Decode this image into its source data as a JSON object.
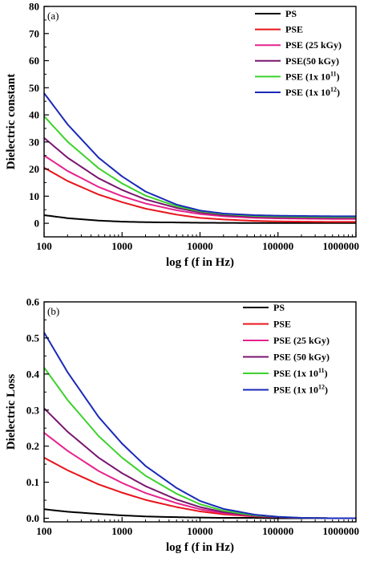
{
  "chart_data": [
    {
      "type": "line",
      "panel_label": "(a)",
      "xlabel": "log f (f in Hz)",
      "ylabel": "Dielectric constant",
      "xscale": "log",
      "xlim": [
        100,
        1000000
      ],
      "ylim": [
        -5,
        80
      ],
      "x_ticks": [
        100,
        1000,
        10000,
        100000,
        1000000
      ],
      "x_tick_labels": [
        "100",
        "1000",
        "10000",
        "100000",
        "1000000"
      ],
      "y_ticks": [
        0,
        10,
        20,
        30,
        40,
        50,
        60,
        70,
        80
      ],
      "y_tick_labels": [
        "0",
        "10",
        "20",
        "30",
        "40",
        "50",
        "60",
        "70",
        "80"
      ],
      "legend_position": "top-right",
      "x": [
        100,
        200,
        500,
        1000,
        2000,
        5000,
        10000,
        20000,
        50000,
        100000,
        200000,
        500000,
        1000000
      ],
      "series": [
        {
          "name": "PS",
          "name_main": "PS",
          "name_sup": "",
          "name_tail": "",
          "color": "#000000",
          "values": [
            3.0,
            1.9,
            1.0,
            0.6,
            0.4,
            0.3,
            0.2,
            0.15,
            0.1,
            0.1,
            0.1,
            0.1,
            0.1
          ]
        },
        {
          "name": "PSE",
          "name_main": "PSE",
          "name_sup": "",
          "name_tail": "",
          "color": "#e8141b",
          "values": [
            20.5,
            15.6,
            10.6,
            7.8,
            5.4,
            3.2,
            2.0,
            1.4,
            0.9,
            0.7,
            0.6,
            0.5,
            0.5
          ]
        },
        {
          "name": "PSE (25 kGy)",
          "name_main": "PSE (25 kGy)",
          "name_sup": "",
          "name_tail": "",
          "color": "#e5238e",
          "values": [
            25.0,
            19.3,
            13.4,
            10.0,
            7.3,
            4.8,
            3.4,
            2.6,
            2.0,
            1.8,
            1.7,
            1.6,
            1.6
          ]
        },
        {
          "name": "PSE(50 kGy)",
          "name_main": "PSE(50 kGy)",
          "name_sup": "",
          "name_tail": "",
          "color": "#7a1570",
          "values": [
            31.5,
            24.2,
            16.6,
            12.3,
            8.8,
            5.7,
            4.0,
            3.0,
            2.4,
            2.2,
            2.1,
            2.0,
            2.0
          ]
        },
        {
          "name": "PSE (1x 10^11)",
          "name_main": "PSE (1x 10",
          "name_sup": "11",
          "name_tail": ")",
          "color": "#3cd22c",
          "values": [
            39.5,
            30.1,
            20.3,
            14.7,
            10.2,
            6.3,
            4.4,
            3.4,
            2.7,
            2.5,
            2.4,
            2.3,
            2.3
          ]
        },
        {
          "name": "PSE (1x 10^12)",
          "name_main": "PSE (1x 10",
          "name_sup": "12",
          "name_tail": ")",
          "color": "#1a2ab8",
          "values": [
            48.0,
            36.5,
            24.2,
            17.3,
            11.7,
            6.9,
            4.7,
            3.6,
            3.0,
            2.8,
            2.7,
            2.6,
            2.6
          ]
        }
      ]
    },
    {
      "type": "line",
      "panel_label": "(b)",
      "xlabel": "log f (f in Hz)",
      "ylabel": "Dielectric Loss",
      "xscale": "log",
      "xlim": [
        100,
        1000000
      ],
      "ylim": [
        -0.01,
        0.6
      ],
      "x_ticks": [
        100,
        1000,
        10000,
        100000,
        1000000
      ],
      "x_tick_labels": [
        "100",
        "1000",
        "10000",
        "100000",
        "1000000"
      ],
      "y_ticks": [
        0.0,
        0.1,
        0.2,
        0.3,
        0.4,
        0.5,
        0.6
      ],
      "y_tick_labels": [
        "0.0",
        "0.1",
        "0.2",
        "0.3",
        "0.4",
        "0.5",
        "0.6"
      ],
      "legend_position": "top-right",
      "x": [
        100,
        200,
        500,
        1000,
        2000,
        5000,
        10000,
        20000,
        50000,
        100000,
        200000,
        500000,
        1000000
      ],
      "series": [
        {
          "name": "PS",
          "name_main": "PS",
          "name_sup": "",
          "name_tail": "",
          "color": "#000000",
          "values": [
            0.025,
            0.018,
            0.012,
            0.008,
            0.005,
            0.003,
            0.002,
            0.001,
            0.001,
            0.0,
            0.0,
            0.0,
            0.0
          ]
        },
        {
          "name": "PSE",
          "name_main": "PSE",
          "name_sup": "",
          "name_tail": "",
          "color": "#e8141b",
          "values": [
            0.168,
            0.133,
            0.094,
            0.071,
            0.051,
            0.031,
            0.019,
            0.011,
            0.005,
            0.003,
            0.001,
            0.0,
            0.0
          ]
        },
        {
          "name": "PSE (25 kGy)",
          "name_main": "PSE (25 kGy)",
          "name_sup": "",
          "name_tail": "",
          "color": "#e5238e",
          "values": [
            0.237,
            0.187,
            0.131,
            0.098,
            0.07,
            0.042,
            0.025,
            0.014,
            0.006,
            0.003,
            0.001,
            0.0,
            0.0
          ]
        },
        {
          "name": "PSE (50 kGy)",
          "name_main": "PSE (50 kGy)",
          "name_sup": "",
          "name_tail": "",
          "color": "#7a1570",
          "values": [
            0.305,
            0.24,
            0.168,
            0.125,
            0.089,
            0.052,
            0.031,
            0.017,
            0.007,
            0.003,
            0.001,
            0.0,
            0.0
          ]
        },
        {
          "name": "PSE (1x 10^11)",
          "name_main": "PSE (1x 10",
          "name_sup": "11",
          "name_tail": ")",
          "color": "#3cd22c",
          "values": [
            0.418,
            0.328,
            0.228,
            0.168,
            0.118,
            0.068,
            0.039,
            0.021,
            0.008,
            0.004,
            0.001,
            0.0,
            0.0
          ]
        },
        {
          "name": "PSE (1x 10^12)",
          "name_main": "PSE (1x 10",
          "name_sup": "12",
          "name_tail": ")",
          "color": "#1a2ab8",
          "values": [
            0.515,
            0.405,
            0.281,
            0.207,
            0.145,
            0.084,
            0.048,
            0.026,
            0.01,
            0.004,
            0.001,
            0.0,
            0.0
          ]
        }
      ]
    }
  ]
}
